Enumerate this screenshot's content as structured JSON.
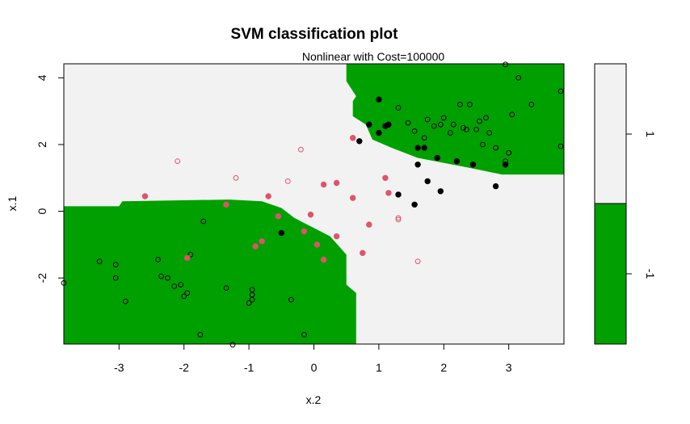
{
  "chart_data": {
    "type": "scatter",
    "title": "SVM classification plot",
    "subtitle": "Nonlinear with Cost=100000",
    "xlabel": "x.2",
    "ylabel": "x.1",
    "xlim": [
      -3.85,
      3.85
    ],
    "ylim": [
      -3.98,
      4.42
    ],
    "xticks": [
      "-3",
      "-2",
      "-1",
      "0",
      "1",
      "2",
      "3"
    ],
    "yticks": [
      "-2",
      "0",
      "2",
      "4"
    ],
    "colors": {
      "class_pos_region": "#f2f2f2",
      "class_neg_region": "#00a000",
      "point_black": "#000000",
      "point_red": "#df536b"
    },
    "decision_regions": {
      "lower_left": [
        [
          -3.85,
          0.15
        ],
        [
          -3.0,
          0.15
        ],
        [
          -2.95,
          0.3
        ],
        [
          -1.3,
          0.35
        ],
        [
          -0.8,
          0.3
        ],
        [
          -0.5,
          0.1
        ],
        [
          -0.3,
          -0.2
        ],
        [
          0.25,
          -0.75
        ],
        [
          0.5,
          -1.3
        ],
        [
          0.5,
          -2.2
        ],
        [
          0.65,
          -2.45
        ],
        [
          0.65,
          -3.98
        ],
        [
          -3.85,
          -3.98
        ]
      ],
      "upper_right": [
        [
          0.5,
          4.42
        ],
        [
          3.85,
          4.42
        ],
        [
          3.85,
          1.1
        ],
        [
          2.9,
          1.1
        ],
        [
          2.4,
          1.3
        ],
        [
          1.6,
          1.6
        ],
        [
          1.2,
          1.9
        ],
        [
          0.9,
          2.15
        ],
        [
          0.8,
          2.6
        ],
        [
          0.6,
          2.85
        ],
        [
          0.6,
          3.3
        ],
        [
          0.65,
          3.45
        ],
        [
          0.5,
          3.9
        ]
      ]
    },
    "legend": {
      "labels": [
        "1",
        "-1"
      ],
      "colors": [
        "#f2f2f2",
        "#00a000"
      ]
    },
    "series": [
      {
        "name": "black_support_vectors",
        "filled": true,
        "color": "#000000",
        "points": [
          [
            0.85,
            2.6
          ],
          [
            0.7,
            2.1
          ],
          [
            1.0,
            2.35
          ],
          [
            1.1,
            2.55
          ],
          [
            1.15,
            2.6
          ],
          [
            1.0,
            3.35
          ],
          [
            1.6,
            1.9
          ],
          [
            1.7,
            1.9
          ],
          [
            1.9,
            1.6
          ],
          [
            1.6,
            1.4
          ],
          [
            2.2,
            1.5
          ],
          [
            2.45,
            1.4
          ],
          [
            2.95,
            1.4
          ],
          [
            1.75,
            0.9
          ],
          [
            1.95,
            0.6
          ],
          [
            1.3,
            0.5
          ],
          [
            1.55,
            0.2
          ],
          [
            2.8,
            0.75
          ],
          [
            -0.5,
            -0.65
          ]
        ]
      },
      {
        "name": "black_points",
        "filled": false,
        "color": "#000000",
        "points": [
          [
            1.3,
            3.1
          ],
          [
            1.45,
            2.65
          ],
          [
            1.55,
            2.4
          ],
          [
            1.7,
            2.2
          ],
          [
            1.75,
            2.75
          ],
          [
            1.95,
            2.6
          ],
          [
            2.0,
            2.8
          ],
          [
            2.1,
            2.35
          ],
          [
            2.15,
            2.6
          ],
          [
            2.3,
            2.5
          ],
          [
            2.25,
            3.2
          ],
          [
            2.35,
            2.45
          ],
          [
            2.5,
            2.45
          ],
          [
            2.55,
            2.7
          ],
          [
            2.6,
            2.0
          ],
          [
            2.65,
            2.8
          ],
          [
            2.4,
            3.2
          ],
          [
            2.7,
            2.35
          ],
          [
            2.8,
            1.9
          ],
          [
            2.95,
            1.5
          ],
          [
            3.0,
            1.75
          ],
          [
            3.05,
            2.9
          ],
          [
            3.15,
            4.0
          ],
          [
            3.35,
            3.2
          ],
          [
            3.8,
            3.6
          ],
          [
            3.8,
            1.95
          ],
          [
            2.95,
            4.4
          ],
          [
            1.85,
            2.55
          ],
          [
            -3.3,
            -1.5
          ],
          [
            -3.05,
            -1.6
          ],
          [
            -3.05,
            -2.0
          ],
          [
            -2.9,
            -2.7
          ],
          [
            -2.4,
            -1.45
          ],
          [
            -2.35,
            -1.95
          ],
          [
            -2.25,
            -2.0
          ],
          [
            -2.15,
            -2.25
          ],
          [
            -2.05,
            -2.2
          ],
          [
            -2.0,
            -2.55
          ],
          [
            -1.95,
            -2.45
          ],
          [
            -1.9,
            -1.3
          ],
          [
            -1.75,
            -3.7
          ],
          [
            -1.7,
            -0.3
          ],
          [
            -1.35,
            -2.3
          ],
          [
            -1.25,
            -4.0
          ],
          [
            -0.95,
            -2.35
          ],
          [
            -0.95,
            -2.5
          ],
          [
            -0.95,
            -2.65
          ],
          [
            -1.0,
            -2.75
          ],
          [
            -0.35,
            -2.65
          ],
          [
            -0.15,
            -3.7
          ],
          [
            -3.85,
            -2.15
          ]
        ]
      },
      {
        "name": "red_support_vectors",
        "filled": true,
        "color": "#df536b",
        "points": [
          [
            -2.6,
            0.45
          ],
          [
            -1.35,
            0.2
          ],
          [
            -0.7,
            0.45
          ],
          [
            -0.55,
            -0.15
          ],
          [
            -0.8,
            -0.9
          ],
          [
            -0.9,
            -1.05
          ],
          [
            -0.15,
            -0.6
          ],
          [
            -0.05,
            -0.1
          ],
          [
            0.05,
            -1.0
          ],
          [
            0.15,
            -1.45
          ],
          [
            0.15,
            0.8
          ],
          [
            0.35,
            0.85
          ],
          [
            0.35,
            -0.75
          ],
          [
            0.6,
            0.4
          ],
          [
            0.6,
            2.2
          ],
          [
            0.75,
            -1.25
          ],
          [
            0.85,
            -0.4
          ],
          [
            1.1,
            1.0
          ],
          [
            1.15,
            0.55
          ],
          [
            -1.95,
            -1.4
          ]
        ]
      },
      {
        "name": "red_points",
        "filled": false,
        "color": "#df536b",
        "points": [
          [
            -2.1,
            1.5
          ],
          [
            -1.2,
            1.0
          ],
          [
            -0.4,
            0.9
          ],
          [
            -0.2,
            1.85
          ],
          [
            1.3,
            -0.2
          ],
          [
            1.3,
            -0.25
          ],
          [
            1.6,
            -1.5
          ]
        ]
      }
    ]
  }
}
